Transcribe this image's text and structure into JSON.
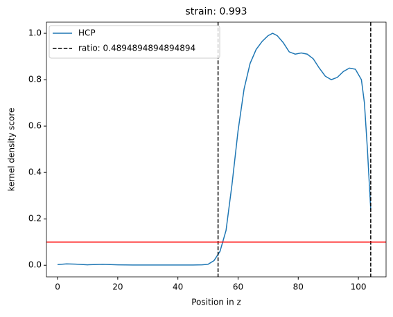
{
  "chart_data": {
    "type": "line",
    "title": "strain: 0.993",
    "x_label": "Position in z",
    "y_label": "kernel density score",
    "series": [
      {
        "name": "HCP",
        "color": "#1f77b4",
        "x": [
          0,
          3,
          6,
          10,
          15,
          20,
          25,
          30,
          35,
          40,
          45,
          48,
          50,
          52,
          54,
          56,
          58,
          60,
          62,
          64,
          66,
          68,
          70,
          71.5,
          73,
          75,
          77,
          79,
          81,
          83,
          85,
          87,
          89,
          91,
          93,
          95,
          97,
          99,
          101,
          102,
          103,
          104.1
        ],
        "values": [
          0.003,
          0.006,
          0.005,
          0.002,
          0.004,
          0.002,
          0.001,
          0.001,
          0.001,
          0.001,
          0.001,
          0.002,
          0.004,
          0.02,
          0.06,
          0.15,
          0.35,
          0.58,
          0.76,
          0.87,
          0.93,
          0.965,
          0.99,
          1.0,
          0.99,
          0.96,
          0.92,
          0.91,
          0.915,
          0.91,
          0.89,
          0.85,
          0.815,
          0.8,
          0.81,
          0.835,
          0.85,
          0.845,
          0.8,
          0.7,
          0.5,
          0.24
        ]
      }
    ],
    "vlines": {
      "name": "ratio: 0.4894894894894894",
      "color": "#000000",
      "x": [
        53.35,
        104.1
      ]
    },
    "hline": {
      "color": "#ff0000",
      "value": 0.1
    },
    "xlim": [
      -3.7,
      109.2
    ],
    "xticks": [
      0,
      20,
      40,
      60,
      80,
      100
    ],
    "ylim": [
      -0.05,
      1.048
    ],
    "yticks": [
      {
        "value": 0,
        "label": "0.0"
      },
      0.2,
      0.4,
      0.6,
      0.8,
      {
        "value": 1,
        "label": "1.0"
      }
    ],
    "legend": "upper left"
  }
}
